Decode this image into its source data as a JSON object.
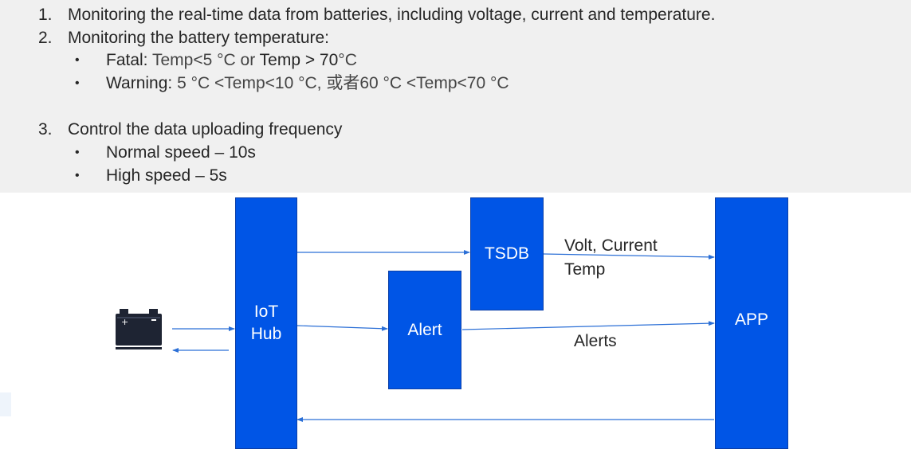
{
  "list": {
    "item1": {
      "num": "1.",
      "text": "Monitoring the real-time data from batteries, including voltage, current and temperature."
    },
    "item2": {
      "num": "2.",
      "text": "Monitoring the battery temperature:",
      "bullets": [
        {
          "bold": "Fatal:",
          "rest": " Temp<5 °C or ",
          "bold2": "Temp > 70",
          "rest2": "°C"
        },
        {
          "bold": "Warning:",
          "rest": " 5 °C <Temp<10 °C, 或者60 °C <Temp<70 °C"
        }
      ]
    },
    "item3": {
      "num": "3.",
      "text": "Control the data uploading frequency",
      "bullets": [
        "Normal speed – 10s",
        "High speed – 5s"
      ]
    },
    "bullet_char": "•"
  },
  "diagram": {
    "iot_hub": "IoT\nHub",
    "tsdb": "TSDB",
    "alert": "Alert",
    "app": "APP",
    "edge_tsdb_app_line1": "Volt, Current",
    "edge_tsdb_app_line2": "Temp",
    "edge_alert_app": "Alerts",
    "icons": {
      "battery": "battery-icon"
    },
    "colors": {
      "box": "#0055e6",
      "arrow": "#2b6fd6",
      "battery": "#1e2433"
    }
  }
}
